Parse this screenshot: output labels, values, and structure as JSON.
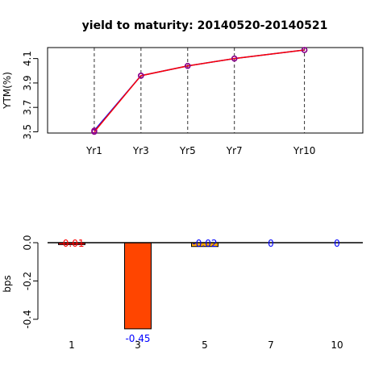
{
  "chart_data": [
    {
      "type": "line",
      "title": "yield to maturity: 20140520-20140521",
      "ylabel": "YTM(%)",
      "categories": [
        "Yr1",
        "Yr3",
        "Yr5",
        "Yr7",
        "Yr10"
      ],
      "x": [
        1,
        3,
        5,
        7,
        10
      ],
      "xlim": [
        -1,
        12.5
      ],
      "ylim": [
        3.49,
        4.19
      ],
      "yticks": [
        3.5,
        3.7,
        3.9,
        4.1
      ],
      "series": [
        {
          "values": [
            3.51,
            3.96,
            4.04,
            4.1,
            4.17
          ],
          "color": "#0000ff",
          "marker": "circle"
        },
        {
          "values": [
            3.5,
            3.96,
            4.04,
            4.1,
            4.17
          ],
          "color": "#ff0000",
          "marker": "circle"
        }
      ],
      "marker_color": "#8b008b",
      "vertical_guides": "dashed",
      "grid": false
    },
    {
      "type": "bar",
      "ylabel": "bps",
      "categories": [
        "1",
        "3",
        "5",
        "7",
        "10"
      ],
      "values": [
        -0.01,
        -0.45,
        -0.02,
        0,
        0
      ],
      "labels": [
        "-0.01",
        "-0.45",
        "-0.02",
        "0",
        "0"
      ],
      "bar_colors": [
        "#ff0000",
        "#ff4500",
        "#ffa500",
        "#ffd700",
        "#ffff00"
      ],
      "label_colors": [
        "#ff0000",
        "#0000ff",
        "#0000ff",
        "#0000ff",
        "#0000ff"
      ],
      "ylim": [
        -0.45,
        0.01
      ],
      "yticks": [
        0.0,
        -0.2,
        -0.4
      ],
      "ytick_labels": [
        "0.0",
        "-0.2",
        "-0.4"
      ],
      "grid": false
    }
  ]
}
